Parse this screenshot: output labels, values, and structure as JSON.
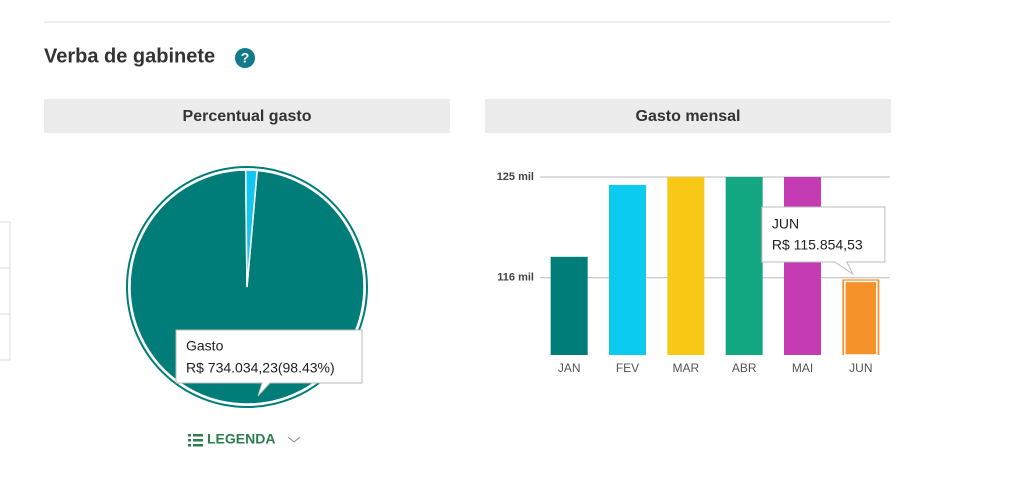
{
  "header": {
    "title": "Verba de gabinete",
    "help_icon": "?"
  },
  "chart_data": [
    {
      "type": "pie",
      "title": "Percentual gasto",
      "categories": [
        "Gasto",
        null
      ],
      "values": [
        98.43,
        1.57
      ],
      "value_labels": [
        "R$ 734.034,23(98.43%)",
        null
      ],
      "colors": [
        "#007d78",
        "#12c7ef"
      ],
      "legend": "LEGENDA"
    },
    {
      "type": "bar",
      "title": "Gasto mensal",
      "categories": [
        "JAN",
        "FEV",
        "MAR",
        "ABR",
        "MAI",
        "JUN"
      ],
      "values": [
        117.87,
        124.29,
        125,
        125,
        125,
        115.85453
      ],
      "value_labels": [
        null,
        null,
        null,
        null,
        null,
        "R$ 115.854,53"
      ],
      "colors": [
        "#007d78",
        "#0ccbf0",
        "#f7c916",
        "#14a882",
        "#c53bb3",
        "#f5922a"
      ],
      "ylim": [
        109.1,
        125
      ],
      "yticks": [
        {
          "value": 116,
          "label": "116 mil"
        },
        {
          "value": 125,
          "label": "125 mil"
        }
      ],
      "grid": true
    }
  ]
}
